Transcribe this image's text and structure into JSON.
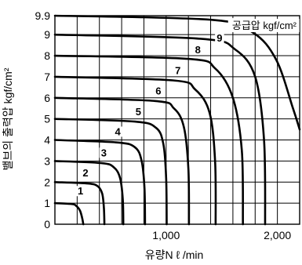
{
  "chart_data": {
    "type": "line",
    "title": "",
    "xlabel": "유량N ℓ /min",
    "ylabel": "밸브의 출력압 kgf/cm²",
    "legend_title": "공급압 kgf/cm²",
    "xlim": [
      0,
      2200
    ],
    "ylim": [
      0,
      9.9
    ],
    "x_ticks": [
      {
        "value": 1000,
        "label": "1,000"
      },
      {
        "value": 2000,
        "label": "2,000"
      }
    ],
    "y_ticks": [
      {
        "value": 0,
        "label": "0"
      },
      {
        "value": 1,
        "label": "1"
      },
      {
        "value": 2,
        "label": "2"
      },
      {
        "value": 3,
        "label": "3"
      },
      {
        "value": 4,
        "label": "4"
      },
      {
        "value": 5,
        "label": "5"
      },
      {
        "value": 6,
        "label": "6"
      },
      {
        "value": 7,
        "label": "7"
      },
      {
        "value": 8,
        "label": "8"
      },
      {
        "value": 9,
        "label": "9"
      },
      {
        "value": 9.9,
        "label": "9.9"
      }
    ],
    "grid": true,
    "legend_position": "top-right",
    "series": [
      {
        "label": "1",
        "supply": 1,
        "x": [
          0,
          150,
          190,
          225,
          245,
          255
        ],
        "y": [
          1,
          0.96,
          0.88,
          0.65,
          0.3,
          0
        ],
        "label_at": {
          "x": 230,
          "y": 1.48
        }
      },
      {
        "label": "2",
        "supply": 2,
        "x": [
          0,
          300,
          385,
          425,
          440,
          445
        ],
        "y": [
          2,
          1.93,
          1.8,
          1.45,
          0.8,
          0
        ],
        "label_at": {
          "x": 275,
          "y": 2.35
        }
      },
      {
        "label": "3",
        "supply": 3,
        "x": [
          0,
          420,
          530,
          585,
          610,
          615
        ],
        "y": [
          3,
          2.9,
          2.7,
          2.2,
          1.2,
          0
        ],
        "label_at": {
          "x": 440,
          "y": 3.3
        }
      },
      {
        "label": "4",
        "supply": 4,
        "x": [
          0,
          560,
          720,
          780,
          805,
          810
        ],
        "y": [
          4,
          3.88,
          3.65,
          3.0,
          1.7,
          0
        ],
        "label_at": {
          "x": 565,
          "y": 4.3
        }
      },
      {
        "label": "5",
        "supply": 5,
        "x": [
          0,
          720,
          910,
          975,
          1000,
          1005
        ],
        "y": [
          5,
          4.87,
          4.57,
          3.8,
          2.2,
          0
        ],
        "label_at": {
          "x": 750,
          "y": 5.25
        }
      },
      {
        "label": "6",
        "supply": 6,
        "x": [
          0,
          900,
          1070,
          1160,
          1200,
          1205
        ],
        "y": [
          6,
          5.85,
          5.5,
          4.6,
          2.6,
          0
        ],
        "label_at": {
          "x": 930,
          "y": 6.23
        }
      },
      {
        "label": "7",
        "supply": 7,
        "x": [
          0,
          1060,
          1260,
          1390,
          1440,
          1445
        ],
        "y": [
          7,
          6.83,
          6.4,
          5.3,
          3.0,
          0
        ],
        "label_at": {
          "x": 1105,
          "y": 7.2
        }
      },
      {
        "label": "8",
        "supply": 8,
        "x": [
          0,
          1200,
          1440,
          1600,
          1680,
          1690
        ],
        "y": [
          8,
          7.85,
          7.4,
          6.0,
          3.5,
          0
        ],
        "label_at": {
          "x": 1285,
          "y": 8.18
        }
      },
      {
        "label": "9",
        "supply": 9,
        "x": [
          0,
          1320,
          1620,
          1800,
          1880,
          1890
        ],
        "y": [
          9,
          8.8,
          8.3,
          7.0,
          4.0,
          0
        ],
        "label_at": {
          "x": 1480,
          "y": 8.75
        }
      },
      {
        "label": "9.9",
        "supply": 9.9,
        "x": [
          0,
          1420,
          1780,
          1990,
          2140,
          2200
        ],
        "y": [
          9.9,
          9.7,
          9.1,
          7.8,
          5.5,
          4.5
        ],
        "label_at": {
          "x": 1650,
          "y": 9.45
        }
      }
    ]
  }
}
